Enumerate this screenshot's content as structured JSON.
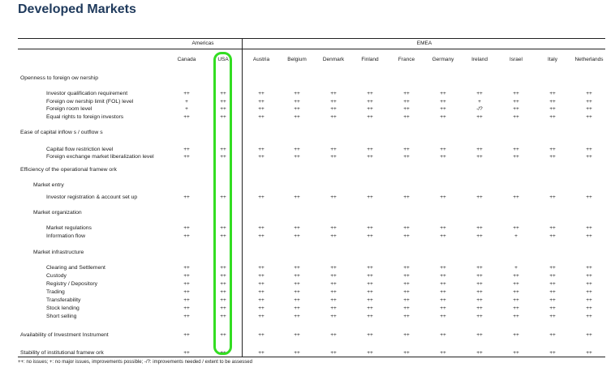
{
  "title": "Developed Markets",
  "groups": {
    "americas": "Americas",
    "emea": "EMEA"
  },
  "columns": [
    "Canada",
    "USA",
    "Austria",
    "Belgium",
    "Denmark",
    "Finland",
    "France",
    "Germany",
    "Ireland",
    "Israel",
    "Italy",
    "Netherlands"
  ],
  "highlighted_column": "USA",
  "highlight_color": "#33dd22",
  "title_color": "#1f3a5c",
  "rows": [
    {
      "label": "Openness to foreign ow nership",
      "level": 0,
      "values": []
    },
    {
      "label": "Investor qualification requirement",
      "level": 2,
      "values": [
        "++",
        "++",
        "++",
        "++",
        "++",
        "++",
        "++",
        "++",
        "++",
        "++",
        "++",
        "++"
      ]
    },
    {
      "label": "Foreign ow nership limit (FOL) level",
      "level": 2,
      "values": [
        "+",
        "++",
        "++",
        "++",
        "++",
        "++",
        "++",
        "++",
        "+",
        "++",
        "++",
        "++"
      ]
    },
    {
      "label": "Foreign room level",
      "level": 2,
      "values": [
        "+",
        "++",
        "++",
        "++",
        "++",
        "++",
        "++",
        "++",
        "-/?",
        "++",
        "++",
        "++"
      ]
    },
    {
      "label": "Equal rights to foreign investors",
      "level": 2,
      "values": [
        "++",
        "++",
        "++",
        "++",
        "++",
        "++",
        "++",
        "++",
        "++",
        "++",
        "++",
        "++"
      ]
    },
    {
      "label": "Ease of capital inflow s / outflow s",
      "level": 0,
      "values": []
    },
    {
      "label": "Capital flow  restriction level",
      "level": 2,
      "values": [
        "++",
        "++",
        "++",
        "++",
        "++",
        "++",
        "++",
        "++",
        "++",
        "++",
        "++",
        "++"
      ]
    },
    {
      "label": "Foreign exchange market liberalization level",
      "level": 2,
      "values": [
        "++",
        "++",
        "++",
        "++",
        "++",
        "++",
        "++",
        "++",
        "++",
        "++",
        "++",
        "++"
      ]
    },
    {
      "label": "Efficiency of the operational framew ork",
      "level": 0,
      "values": []
    },
    {
      "label": "Market entry",
      "level": 1,
      "values": []
    },
    {
      "label": "Investor registration & account set up",
      "level": 2,
      "values": [
        "++",
        "++",
        "++",
        "++",
        "++",
        "++",
        "++",
        "++",
        "++",
        "++",
        "++",
        "++"
      ]
    },
    {
      "label": "Market organization",
      "level": 1,
      "values": []
    },
    {
      "label": "Market regulations",
      "level": 2,
      "values": [
        "++",
        "++",
        "++",
        "++",
        "++",
        "++",
        "++",
        "++",
        "++",
        "++",
        "++",
        "++"
      ]
    },
    {
      "label": "Information flow",
      "level": 2,
      "values": [
        "++",
        "++",
        "++",
        "++",
        "++",
        "++",
        "++",
        "++",
        "++",
        "+",
        "++",
        "++"
      ]
    },
    {
      "label": "Market infrastructure",
      "level": 1,
      "values": []
    },
    {
      "label": "Clearing and Settlement",
      "level": 2,
      "values": [
        "++",
        "++",
        "++",
        "++",
        "++",
        "++",
        "++",
        "++",
        "++",
        "+",
        "++",
        "++"
      ]
    },
    {
      "label": "Custody",
      "level": 2,
      "values": [
        "++",
        "++",
        "++",
        "++",
        "++",
        "++",
        "++",
        "++",
        "++",
        "++",
        "++",
        "++"
      ]
    },
    {
      "label": "Registry / Depository",
      "level": 2,
      "values": [
        "++",
        "++",
        "++",
        "++",
        "++",
        "++",
        "++",
        "++",
        "++",
        "++",
        "++",
        "++"
      ]
    },
    {
      "label": "Trading",
      "level": 2,
      "values": [
        "++",
        "++",
        "++",
        "++",
        "++",
        "++",
        "++",
        "++",
        "++",
        "++",
        "++",
        "++"
      ]
    },
    {
      "label": "Transferability",
      "level": 2,
      "values": [
        "++",
        "++",
        "++",
        "++",
        "++",
        "++",
        "++",
        "++",
        "++",
        "++",
        "++",
        "++"
      ]
    },
    {
      "label": "Stock lending",
      "level": 2,
      "values": [
        "++",
        "++",
        "++",
        "++",
        "++",
        "++",
        "++",
        "++",
        "++",
        "++",
        "++",
        "++"
      ]
    },
    {
      "label": "Short selling",
      "level": 2,
      "values": [
        "++",
        "++",
        "++",
        "++",
        "++",
        "++",
        "++",
        "++",
        "++",
        "++",
        "++",
        "++"
      ]
    },
    {
      "label": "Availability of Investment Instrument",
      "level": 0,
      "values": [
        "++",
        "++",
        "++",
        "++",
        "++",
        "++",
        "++",
        "++",
        "++",
        "++",
        "++",
        "++"
      ]
    },
    {
      "label": "Stability of institutional framew ork",
      "level": 0,
      "values": [
        "++",
        "++",
        "++",
        "++",
        "++",
        "++",
        "++",
        "++",
        "++",
        "++",
        "++",
        "++"
      ]
    }
  ],
  "footnote": "++: no issues; +: no major issues, improvements possible;  -/?: improvements needed / extent to be assessed"
}
